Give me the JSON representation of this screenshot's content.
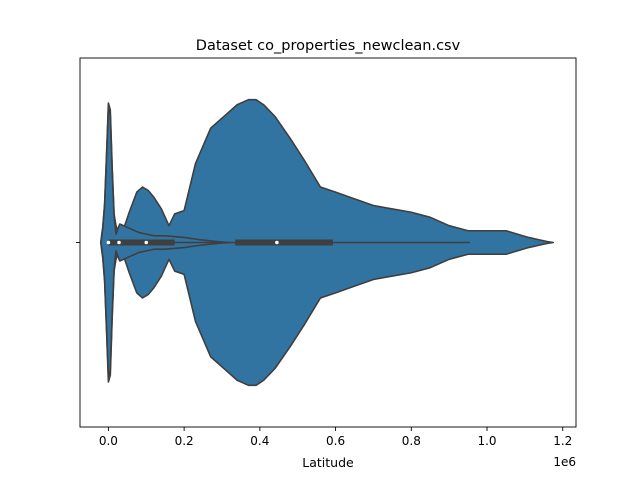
{
  "chart_data": {
    "type": "violin",
    "title": "Dataset co_properties_newclean.csv",
    "xlabel": "Latitude",
    "ylabel": "",
    "offset_label": "1e6",
    "xlim": [
      -75000,
      1235000
    ],
    "x_ticks": [
      0,
      200000,
      400000,
      600000,
      800000,
      1000000,
      1200000
    ],
    "x_tick_labels": [
      "0.0",
      "0.2",
      "0.4",
      "0.6",
      "0.8",
      "1.0",
      "1.2"
    ],
    "colors": {
      "fill": "#3274a1",
      "line": "#3f3f3f",
      "median": "#ffffff"
    },
    "violins": [
      {
        "name": "outer",
        "outline": [
          [
            -20000,
            0.0
          ],
          [
            -18000,
            0.04
          ],
          [
            -15000,
            0.09
          ],
          [
            -10000,
            0.23
          ],
          [
            -5000,
            0.52
          ],
          [
            0,
            0.83
          ],
          [
            5000,
            0.79
          ],
          [
            10000,
            0.45
          ],
          [
            15000,
            0.17
          ],
          [
            20000,
            0.1
          ],
          [
            25000,
            0.07
          ],
          [
            30000,
            0.06
          ],
          [
            40000,
            0.08
          ],
          [
            55000,
            0.18
          ],
          [
            75000,
            0.3
          ],
          [
            90000,
            0.33
          ],
          [
            105000,
            0.31
          ],
          [
            120000,
            0.27
          ],
          [
            140000,
            0.2
          ],
          [
            160000,
            0.1
          ],
          [
            175000,
            0.17
          ],
          [
            200000,
            0.19
          ],
          [
            230000,
            0.47
          ],
          [
            270000,
            0.68
          ],
          [
            310000,
            0.76
          ],
          [
            340000,
            0.82
          ],
          [
            370000,
            0.85
          ],
          [
            390000,
            0.85
          ],
          [
            410000,
            0.82
          ],
          [
            440000,
            0.75
          ],
          [
            480000,
            0.62
          ],
          [
            520000,
            0.48
          ],
          [
            560000,
            0.33
          ],
          [
            600000,
            0.3
          ],
          [
            650000,
            0.26
          ],
          [
            700000,
            0.22
          ],
          [
            750000,
            0.2
          ],
          [
            800000,
            0.18
          ],
          [
            850000,
            0.15
          ],
          [
            900000,
            0.1
          ],
          [
            950000,
            0.07
          ],
          [
            1000000,
            0.07
          ],
          [
            1050000,
            0.07
          ],
          [
            1080000,
            0.05
          ],
          [
            1110000,
            0.03
          ],
          [
            1140000,
            0.015
          ],
          [
            1160000,
            0.005
          ],
          [
            1175000,
            0.0
          ]
        ]
      },
      {
        "name": "inner",
        "outline": [
          [
            -20000,
            0.0
          ],
          [
            -18000,
            0.03
          ],
          [
            -15000,
            0.08
          ],
          [
            -10000,
            0.22
          ],
          [
            -5000,
            0.5
          ],
          [
            0,
            0.8
          ],
          [
            5000,
            0.76
          ],
          [
            10000,
            0.43
          ],
          [
            15000,
            0.16
          ],
          [
            20000,
            0.05
          ],
          [
            30000,
            0.11
          ],
          [
            50000,
            0.09
          ],
          [
            80000,
            0.06
          ],
          [
            100000,
            0.05
          ],
          [
            120000,
            0.04
          ],
          [
            150000,
            0.04
          ],
          [
            200000,
            0.03
          ],
          [
            230000,
            0.02
          ],
          [
            260000,
            0.012
          ],
          [
            290000,
            0.005
          ],
          [
            320000,
            0.0
          ]
        ]
      }
    ],
    "box": {
      "whisker_min": -3000,
      "whisker_max": 955000,
      "segments": [
        {
          "q1": 0,
          "q3": 175000
        },
        {
          "q1": 335000,
          "q3": 593000
        }
      ],
      "medians": [
        0,
        28000,
        100000,
        445000
      ]
    }
  }
}
